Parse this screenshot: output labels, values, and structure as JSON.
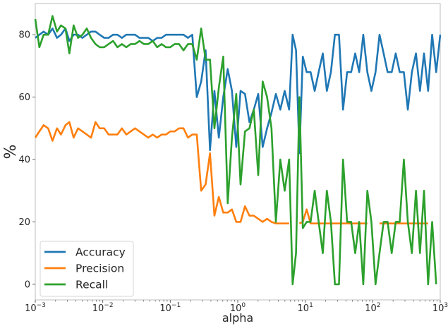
{
  "chart_data": {
    "type": "line",
    "xlabel": "alpha",
    "ylabel": "%",
    "xscale": "log",
    "xlim": [
      0.001,
      1000
    ],
    "ylim": [
      -5,
      90
    ],
    "xticks": [
      {
        "value": 0.001,
        "base": "10",
        "exp": "−3"
      },
      {
        "value": 0.01,
        "base": "10",
        "exp": "−2"
      },
      {
        "value": 0.1,
        "base": "10",
        "exp": "−1"
      },
      {
        "value": 1,
        "base": "10",
        "exp": "0"
      },
      {
        "value": 10,
        "base": "10",
        "exp": "1"
      },
      {
        "value": 100,
        "base": "10",
        "exp": "2"
      },
      {
        "value": 1000,
        "base": "10",
        "exp": "3"
      }
    ],
    "yticks": [
      0,
      20,
      40,
      60,
      80
    ],
    "grid": false,
    "legend_position": "lower-left",
    "series": [
      {
        "name": "Accuracy",
        "color": "#1f77b4",
        "points": [
          [
            0.001,
            79
          ],
          [
            0.00115,
            80
          ],
          [
            0.00133,
            81
          ],
          [
            0.00155,
            80
          ],
          [
            0.0018,
            82
          ],
          [
            0.0021,
            79
          ],
          [
            0.0024,
            80
          ],
          [
            0.0028,
            82
          ],
          [
            0.0032,
            78
          ],
          [
            0.0037,
            80
          ],
          [
            0.0043,
            80
          ],
          [
            0.005,
            79
          ],
          [
            0.0058,
            80
          ],
          [
            0.0067,
            81
          ],
          [
            0.0078,
            81
          ],
          [
            0.009,
            80
          ],
          [
            0.0105,
            79
          ],
          [
            0.0122,
            79
          ],
          [
            0.0142,
            80
          ],
          [
            0.0165,
            80
          ],
          [
            0.0192,
            79
          ],
          [
            0.0223,
            80
          ],
          [
            0.0259,
            80
          ],
          [
            0.0301,
            80
          ],
          [
            0.035,
            79
          ],
          [
            0.0407,
            79
          ],
          [
            0.0473,
            79
          ],
          [
            0.055,
            78
          ],
          [
            0.064,
            79
          ],
          [
            0.0744,
            79
          ],
          [
            0.0865,
            80
          ],
          [
            0.1,
            80
          ],
          [
            0.116,
            80
          ],
          [
            0.135,
            80
          ],
          [
            0.157,
            80
          ],
          [
            0.183,
            79
          ],
          [
            0.212,
            80
          ],
          [
            0.247,
            60
          ],
          [
            0.287,
            65
          ],
          [
            0.334,
            75
          ],
          [
            0.388,
            43
          ],
          [
            0.451,
            62
          ],
          [
            0.524,
            47
          ],
          [
            0.61,
            60
          ],
          [
            0.71,
            69
          ],
          [
            0.82,
            62
          ],
          [
            0.95,
            44
          ],
          [
            1.1,
            62
          ],
          [
            1.28,
            61
          ],
          [
            1.49,
            52
          ],
          [
            1.73,
            56
          ],
          [
            2.01,
            61
          ],
          [
            2.34,
            44
          ],
          [
            2.72,
            50
          ],
          [
            3.16,
            55
          ],
          [
            3.67,
            61
          ],
          [
            4.27,
            56
          ],
          [
            4.96,
            62
          ],
          [
            5.77,
            56
          ],
          [
            6.5,
            80
          ],
          [
            7.3,
            75
          ],
          [
            8.2,
            42
          ],
          [
            9.2,
            73
          ],
          [
            10.5,
            68
          ],
          [
            12,
            68
          ],
          [
            13.8,
            62
          ],
          [
            15.8,
            68
          ],
          [
            18.2,
            74
          ],
          [
            20.9,
            62
          ],
          [
            24,
            68
          ],
          [
            27.5,
            80
          ],
          [
            31.6,
            80
          ],
          [
            36.3,
            56
          ],
          [
            41.7,
            68
          ],
          [
            47.9,
            68
          ],
          [
            55,
            74
          ],
          [
            63,
            68
          ],
          [
            72.4,
            80
          ],
          [
            83.2,
            68
          ],
          [
            95.5,
            62
          ],
          [
            110,
            68
          ],
          [
            126,
            80
          ],
          [
            145,
            74
          ],
          [
            166,
            68
          ],
          [
            191,
            68
          ],
          [
            219,
            74
          ],
          [
            251,
            68
          ],
          [
            289,
            68
          ],
          [
            331,
            56
          ],
          [
            380,
            68
          ],
          [
            437,
            74
          ],
          [
            501,
            62
          ],
          [
            575,
            74
          ],
          [
            661,
            62
          ],
          [
            759,
            80
          ],
          [
            871,
            68
          ],
          [
            1000,
            80
          ]
        ]
      },
      {
        "name": "Precision",
        "color": "#ff7f0e",
        "points": [
          [
            0.001,
            47
          ],
          [
            0.00115,
            49
          ],
          [
            0.00133,
            51
          ],
          [
            0.00155,
            50
          ],
          [
            0.0018,
            46
          ],
          [
            0.0021,
            50
          ],
          [
            0.0024,
            48
          ],
          [
            0.0028,
            51
          ],
          [
            0.0032,
            52
          ],
          [
            0.0037,
            47
          ],
          [
            0.0043,
            50
          ],
          [
            0.005,
            49
          ],
          [
            0.0058,
            48
          ],
          [
            0.0067,
            47
          ],
          [
            0.0078,
            52
          ],
          [
            0.009,
            50
          ],
          [
            0.0105,
            50
          ],
          [
            0.0122,
            48
          ],
          [
            0.0142,
            48
          ],
          [
            0.0165,
            48
          ],
          [
            0.0192,
            50
          ],
          [
            0.0223,
            48
          ],
          [
            0.0259,
            49
          ],
          [
            0.0301,
            50
          ],
          [
            0.035,
            49
          ],
          [
            0.0407,
            48
          ],
          [
            0.0473,
            47
          ],
          [
            0.055,
            48
          ],
          [
            0.064,
            47
          ],
          [
            0.0744,
            48
          ],
          [
            0.0865,
            48
          ],
          [
            0.1,
            49
          ],
          [
            0.116,
            49
          ],
          [
            0.135,
            50
          ],
          [
            0.157,
            50
          ],
          [
            0.183,
            47
          ],
          [
            0.212,
            48
          ],
          [
            0.247,
            48
          ],
          [
            0.287,
            30
          ],
          [
            0.334,
            32
          ],
          [
            0.388,
            42
          ],
          [
            0.451,
            22
          ],
          [
            0.524,
            28
          ],
          [
            0.61,
            23
          ],
          [
            0.71,
            23
          ],
          [
            0.82,
            24
          ],
          [
            0.95,
            20
          ],
          [
            1.1,
            20
          ],
          [
            1.28,
            25
          ],
          [
            1.49,
            22
          ],
          [
            1.73,
            22
          ],
          [
            2.01,
            21
          ],
          [
            2.34,
            20
          ],
          [
            2.72,
            21
          ],
          [
            3.16,
            20
          ],
          [
            3.67,
            19.5
          ],
          [
            4.27,
            19.5
          ],
          [
            4.96,
            19.5
          ],
          [
            5.77,
            19.5
          ],
          [
            6.5,
            null
          ],
          [
            7.3,
            null
          ],
          [
            8.2,
            19.5
          ],
          [
            9.2,
            20
          ],
          [
            10.5,
            24
          ],
          [
            12,
            19.5
          ],
          [
            13.8,
            19.5
          ],
          [
            15.8,
            19.5
          ],
          [
            18.2,
            19.5
          ],
          [
            20.9,
            19.5
          ],
          [
            24,
            19.5
          ],
          [
            27.5,
            19.5
          ],
          [
            31.6,
            19.5
          ],
          [
            36.3,
            19.5
          ],
          [
            41.7,
            19.5
          ],
          [
            47.9,
            19.5
          ],
          [
            55,
            19.5
          ],
          [
            63,
            19.5
          ],
          [
            72.4,
            19.5
          ],
          [
            83.2,
            19.5
          ],
          [
            95.5,
            null
          ],
          [
            110,
            null
          ],
          [
            126,
            19.5
          ],
          [
            145,
            19.5
          ],
          [
            166,
            19.5
          ],
          [
            191,
            19.5
          ],
          [
            219,
            19.5
          ],
          [
            251,
            19.5
          ],
          [
            289,
            19.5
          ],
          [
            331,
            19.5
          ],
          [
            380,
            19.5
          ],
          [
            437,
            19.5
          ],
          [
            501,
            19.5
          ],
          [
            575,
            19.5
          ],
          [
            661,
            19.5
          ]
        ]
      },
      {
        "name": "Recall",
        "color": "#2ca02c",
        "points": [
          [
            0.001,
            85
          ],
          [
            0.00115,
            76
          ],
          [
            0.00133,
            80
          ],
          [
            0.00155,
            80
          ],
          [
            0.0018,
            86
          ],
          [
            0.0021,
            81
          ],
          [
            0.0024,
            83
          ],
          [
            0.0028,
            82
          ],
          [
            0.0032,
            74
          ],
          [
            0.0037,
            83
          ],
          [
            0.0043,
            79
          ],
          [
            0.005,
            80
          ],
          [
            0.0058,
            82
          ],
          [
            0.0067,
            79
          ],
          [
            0.0078,
            77
          ],
          [
            0.009,
            76
          ],
          [
            0.0105,
            76
          ],
          [
            0.0122,
            77
          ],
          [
            0.0142,
            78
          ],
          [
            0.0165,
            76
          ],
          [
            0.0192,
            77
          ],
          [
            0.0223,
            76
          ],
          [
            0.0259,
            77
          ],
          [
            0.0301,
            77
          ],
          [
            0.035,
            78
          ],
          [
            0.0407,
            77
          ],
          [
            0.0473,
            77
          ],
          [
            0.055,
            78
          ],
          [
            0.064,
            76
          ],
          [
            0.0744,
            77
          ],
          [
            0.0865,
            76
          ],
          [
            0.1,
            76
          ],
          [
            0.116,
            77
          ],
          [
            0.135,
            77
          ],
          [
            0.157,
            75
          ],
          [
            0.183,
            77
          ],
          [
            0.212,
            77
          ],
          [
            0.247,
            72
          ],
          [
            0.287,
            82
          ],
          [
            0.334,
            72
          ],
          [
            0.388,
            72
          ],
          [
            0.451,
            50
          ],
          [
            0.524,
            63
          ],
          [
            0.61,
            73
          ],
          [
            0.71,
            26
          ],
          [
            0.82,
            47
          ],
          [
            0.95,
            61
          ],
          [
            1.1,
            32
          ],
          [
            1.28,
            49
          ],
          [
            1.49,
            50
          ],
          [
            1.73,
            56
          ],
          [
            2.01,
            35
          ],
          [
            2.34,
            65
          ],
          [
            2.72,
            60
          ],
          [
            3.16,
            50
          ],
          [
            3.67,
            20
          ],
          [
            4.27,
            40
          ],
          [
            4.96,
            30
          ],
          [
            5.77,
            40
          ],
          [
            6.5,
            0
          ],
          [
            7.3,
            10
          ],
          [
            8.2,
            60
          ],
          [
            9.2,
            18
          ],
          [
            10.5,
            20
          ],
          [
            12,
            20
          ],
          [
            13.8,
            30
          ],
          [
            15.8,
            20
          ],
          [
            18.2,
            10
          ],
          [
            20.9,
            30
          ],
          [
            24,
            20
          ],
          [
            27.5,
            0
          ],
          [
            31.6,
            0
          ],
          [
            36.3,
            40
          ],
          [
            41.7,
            20
          ],
          [
            47.9,
            20
          ],
          [
            55,
            10
          ],
          [
            63,
            20
          ],
          [
            72.4,
            0
          ],
          [
            83.2,
            30
          ],
          [
            95.5,
            20
          ],
          [
            110,
            0
          ],
          [
            126,
            10
          ],
          [
            145,
            20
          ],
          [
            166,
            20
          ],
          [
            191,
            10
          ],
          [
            219,
            20
          ],
          [
            251,
            20
          ],
          [
            289,
            40
          ],
          [
            331,
            20
          ],
          [
            380,
            10
          ],
          [
            437,
            30
          ],
          [
            501,
            10
          ],
          [
            575,
            30
          ],
          [
            661,
            0
          ],
          [
            759,
            20
          ],
          [
            871,
            0
          ]
        ]
      }
    ]
  }
}
